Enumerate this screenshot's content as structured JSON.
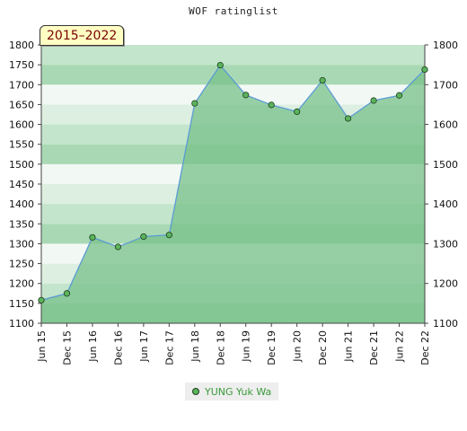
{
  "chart_data": {
    "type": "line",
    "title": "WOF ratinglist",
    "subtitle": "2015–2022",
    "xlabel": "",
    "ylabel": "",
    "categories": [
      "Jun 15",
      "Dec 15",
      "Jun 16",
      "Dec 16",
      "Jun 17",
      "Dec 17",
      "Jun 18",
      "Dec 18",
      "Jun 19",
      "Dec 19",
      "Jun 20",
      "Dec 20",
      "Jun 21",
      "Dec 21",
      "Jun 22",
      "Dec 22"
    ],
    "series": [
      {
        "name": "YUNG Yuk Wa",
        "values": [
          1158,
          1175,
          1316,
          1292,
          1318,
          1322,
          1653,
          1749,
          1674,
          1649,
          1632,
          1711,
          1615,
          1660,
          1673,
          1738
        ]
      }
    ],
    "ylim": [
      1100,
      1800
    ],
    "left_ticks": [
      1100,
      1150,
      1200,
      1250,
      1300,
      1350,
      1400,
      1450,
      1500,
      1550,
      1600,
      1650,
      1700,
      1750,
      1800
    ],
    "right_ticks": [
      1100,
      1200,
      1300,
      1400,
      1500,
      1600,
      1700,
      1800
    ],
    "grid": true,
    "legend_position": "bottom",
    "colors": {
      "line": "#5b9bd5",
      "fill": "#78c08a",
      "marker": "#5bb35b",
      "legend_text": "#3a9a3a",
      "badge_bg": "#ffffc4",
      "badge_text": "#7a0000"
    }
  }
}
